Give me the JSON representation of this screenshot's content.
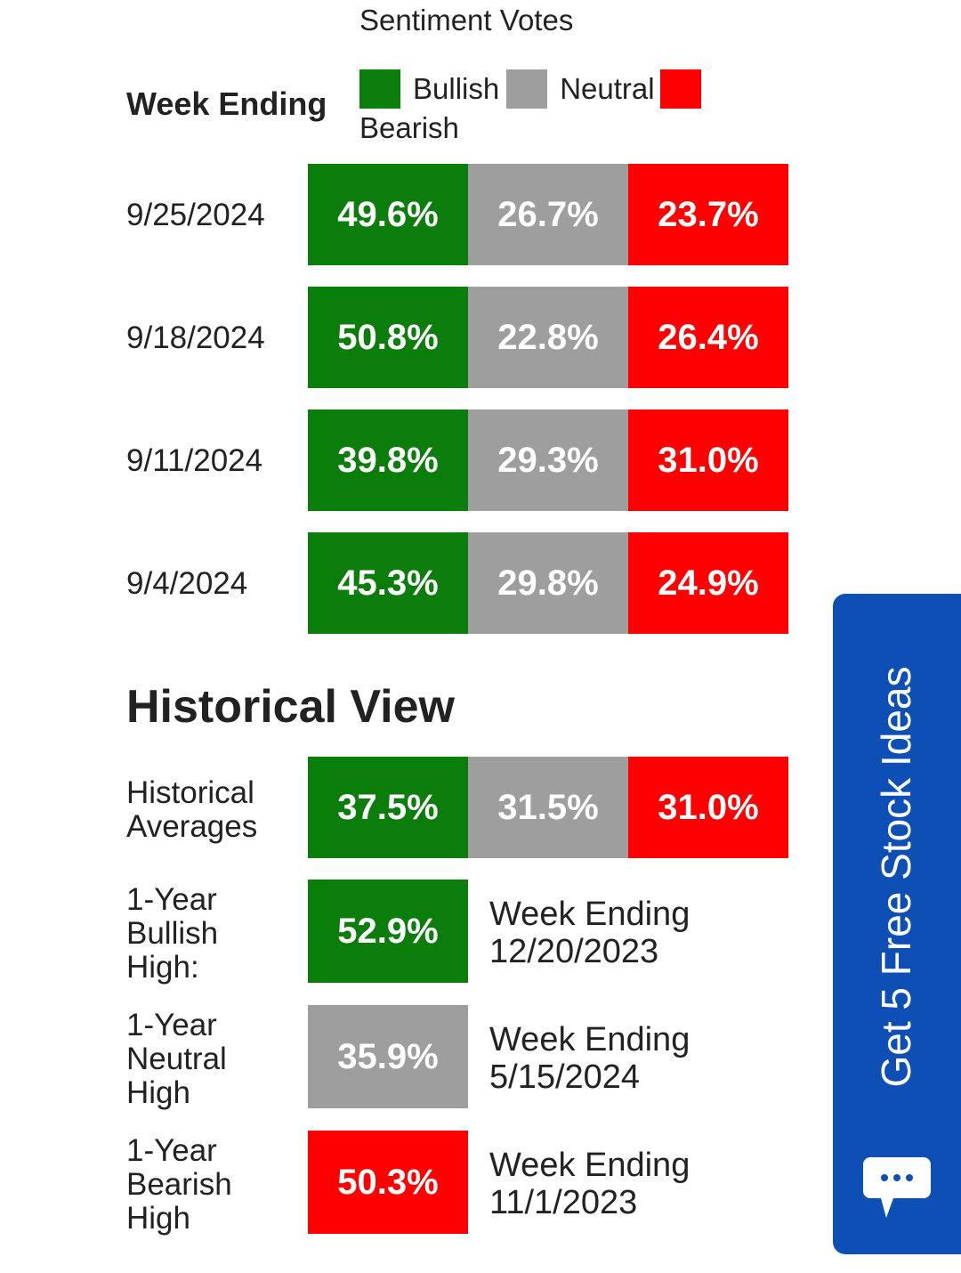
{
  "header": {
    "title": "Sentiment Votes",
    "week_ending_label": "Week Ending",
    "legend": {
      "bullish": "Bullish",
      "neutral": "Neutral",
      "bearish": "Bearish"
    }
  },
  "colors": {
    "bullish": "#0a7d0a",
    "neutral": "#9e9e9e",
    "bearish": "#fe0000",
    "cta": "#0d4fb5"
  },
  "weeks": [
    {
      "date": "9/25/2024",
      "bullish": "49.6%",
      "neutral": "26.7%",
      "bearish": "23.7%"
    },
    {
      "date": "9/18/2024",
      "bullish": "50.8%",
      "neutral": "22.8%",
      "bearish": "26.4%"
    },
    {
      "date": "9/11/2024",
      "bullish": "39.8%",
      "neutral": "29.3%",
      "bearish": "31.0%"
    },
    {
      "date": "9/4/2024",
      "bullish": "45.3%",
      "neutral": "29.8%",
      "bearish": "24.9%"
    }
  ],
  "historical": {
    "title": "Historical View",
    "averages": {
      "label_line1": "Historical",
      "label_line2": "Averages",
      "bullish": "37.5%",
      "neutral": "31.5%",
      "bearish": "31.0%"
    },
    "bullish_high": {
      "l1": "1-Year",
      "l2": "Bullish",
      "l3": "High:",
      "value": "52.9%",
      "week_label": "Week Ending",
      "week_date": "12/20/2023"
    },
    "neutral_high": {
      "l1": "1-Year",
      "l2": "Neutral",
      "l3": "High",
      "value": "35.9%",
      "week_label": "Week Ending",
      "week_date": "5/15/2024"
    },
    "bearish_high": {
      "l1": "1-Year",
      "l2": "Bearish",
      "l3": "High",
      "value": "50.3%",
      "week_label": "Week Ending",
      "week_date": "11/1/2023"
    }
  },
  "cta": {
    "label": "Get 5 Free Stock Ideas",
    "icon": "chat-bubble-icon"
  }
}
